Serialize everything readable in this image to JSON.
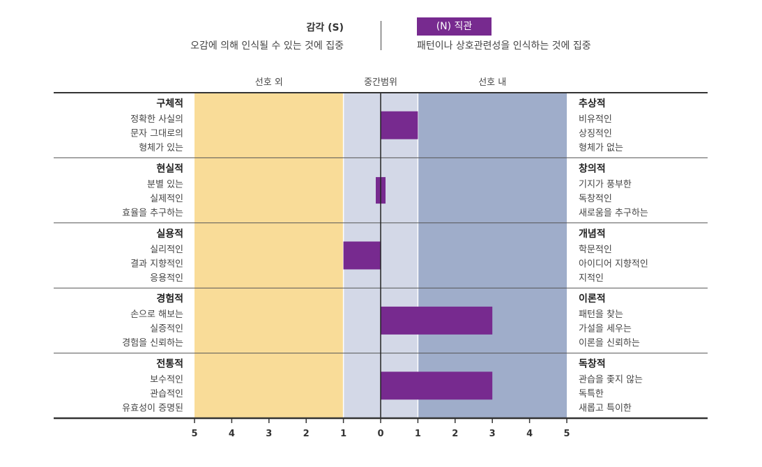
{
  "header": {
    "left": {
      "title": "감각 (S)",
      "subtitle": "오감에 의해 인식될 수 있는 것에 집중"
    },
    "right": {
      "title": "(N) 직관",
      "subtitle": "패턴이나 상호관련성을 인식하는 것에 집중",
      "badge_color": "#772a8f"
    }
  },
  "chart_data": {
    "type": "bar",
    "orientation": "horizontal-diverging",
    "zone_labels": [
      "선호 외",
      "중간범위",
      "선호 내"
    ],
    "zone_colors": {
      "outside": "#f9dc98",
      "middle": "#d3d8e7",
      "inside": "#9fadca"
    },
    "bar_color": "#772a8f",
    "xlim": [
      -5,
      5
    ],
    "ticks": [
      {
        "value": -5,
        "label": "5"
      },
      {
        "value": -4,
        "label": "4"
      },
      {
        "value": -3,
        "label": "3"
      },
      {
        "value": -2,
        "label": "2"
      },
      {
        "value": -1,
        "label": "1"
      },
      {
        "value": 0,
        "label": "0"
      },
      {
        "value": 1,
        "label": "1"
      },
      {
        "value": 2,
        "label": "2"
      },
      {
        "value": 3,
        "label": "3"
      },
      {
        "value": 4,
        "label": "4"
      },
      {
        "value": 5,
        "label": "5"
      }
    ],
    "rows": [
      {
        "left_title": "구체적",
        "left_desc": [
          "정확한 사실의",
          "문자 그대로의",
          "형체가 있는"
        ],
        "right_title": "추상적",
        "right_desc": [
          "비유적인",
          "상징적인",
          "형체가 없는"
        ],
        "value": 1
      },
      {
        "left_title": "현실적",
        "left_desc": [
          "분별 있는",
          "실제적인",
          "효율을 추구하는"
        ],
        "right_title": "창의적",
        "right_desc": [
          "기지가 풍부한",
          "독창적인",
          "새로움을 추구하는"
        ],
        "value": 0
      },
      {
        "left_title": "실용적",
        "left_desc": [
          "실리적인",
          "결과 지향적인",
          "응용적인"
        ],
        "right_title": "개념적",
        "right_desc": [
          "학문적인",
          "아이디어 지향적인",
          "지적인"
        ],
        "value": -1
      },
      {
        "left_title": "경험적",
        "left_desc": [
          "손으로 해보는",
          "실증적인",
          "경험을 신뢰하는"
        ],
        "right_title": "이론적",
        "right_desc": [
          "패턴을 찾는",
          "가설을 세우는",
          "이론을 신뢰하는"
        ],
        "value": 3
      },
      {
        "left_title": "전통적",
        "left_desc": [
          "보수적인",
          "관습적인",
          "유효성이 증명된"
        ],
        "right_title": "독창적",
        "right_desc": [
          "관습을 좇지 않는",
          "독특한",
          "새롭고 특이한"
        ],
        "value": 3
      }
    ]
  }
}
